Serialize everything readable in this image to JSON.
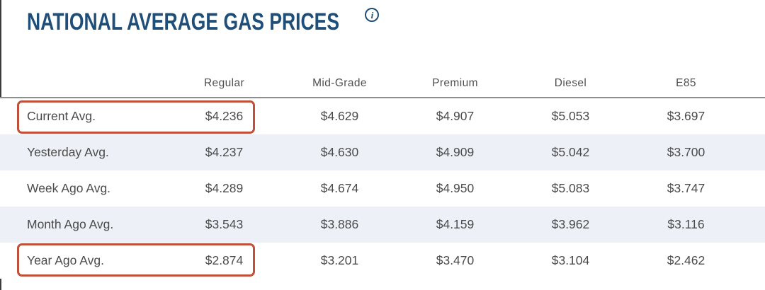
{
  "page": {
    "title": "NATIONAL AVERAGE GAS PRICES",
    "info_icon": "i"
  },
  "table": {
    "columns": [
      "Regular",
      "Mid-Grade",
      "Premium",
      "Diesel",
      "E85"
    ],
    "rows": [
      {
        "label": "Current Avg.",
        "values": [
          "$4.236",
          "$4.629",
          "$4.907",
          "$5.053",
          "$3.697"
        ],
        "highlighted": true
      },
      {
        "label": "Yesterday Avg.",
        "values": [
          "$4.237",
          "$4.630",
          "$4.909",
          "$5.042",
          "$3.700"
        ],
        "highlighted": false
      },
      {
        "label": "Week Ago Avg.",
        "values": [
          "$4.289",
          "$4.674",
          "$4.950",
          "$5.083",
          "$3.747"
        ],
        "highlighted": false
      },
      {
        "label": "Month Ago Avg.",
        "values": [
          "$3.543",
          "$3.886",
          "$4.159",
          "$3.962",
          "$3.116"
        ],
        "highlighted": false
      },
      {
        "label": "Year Ago Avg.",
        "values": [
          "$2.874",
          "$3.201",
          "$3.470",
          "$3.104",
          "$2.462"
        ],
        "highlighted": true
      }
    ],
    "highlights": [
      {
        "row": "Current Avg.",
        "column": "Regular",
        "value": "$4.236"
      },
      {
        "row": "Year Ago Avg.",
        "column": "Regular",
        "value": "$2.874"
      }
    ]
  },
  "colors": {
    "accent-blue": "#1f4e79",
    "highlight-red": "#c0503a",
    "stripe": "#edf1f7",
    "rule-gray": "#8e8e8e",
    "text-gray": "#4b4b4b",
    "header-gray": "#4f4f4f"
  }
}
